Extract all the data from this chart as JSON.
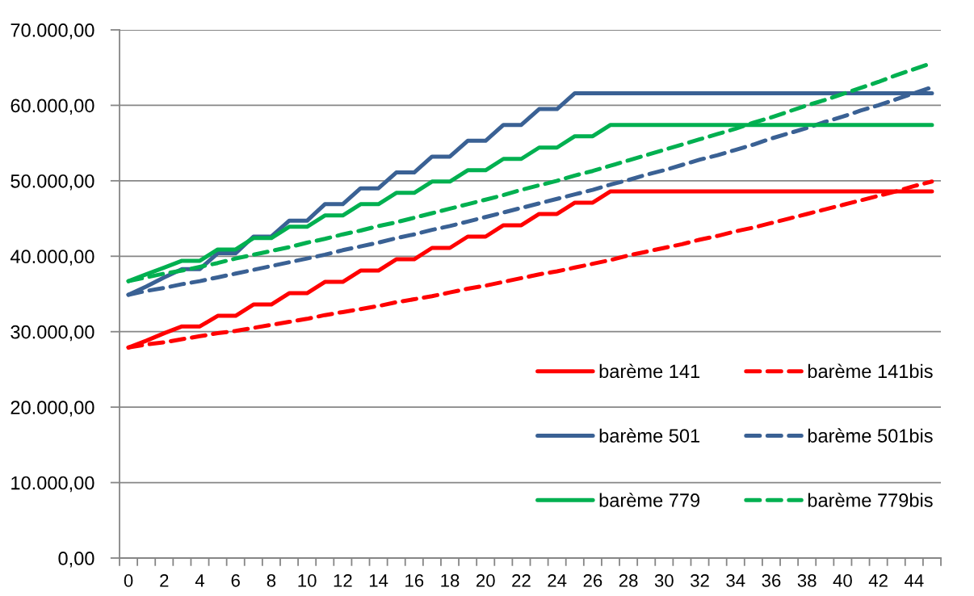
{
  "chart_data": {
    "type": "line",
    "categories": [
      "0",
      null,
      "2",
      null,
      "4",
      null,
      "6",
      null,
      "8",
      null,
      "10",
      null,
      "12",
      null,
      "14",
      null,
      "16",
      null,
      "18",
      null,
      "20",
      null,
      "22",
      null,
      "24",
      null,
      "26",
      null,
      "28",
      null,
      "30",
      null,
      "32",
      null,
      "34",
      null,
      "36",
      null,
      "38",
      null,
      "40",
      null,
      "42",
      null,
      "44",
      null
    ],
    "ylim": [
      0,
      70000
    ],
    "yticks": [
      {
        "value": 0,
        "label": "0,00"
      },
      {
        "value": 10000,
        "label": "10.000,00"
      },
      {
        "value": 20000,
        "label": "20.000,00"
      },
      {
        "value": 30000,
        "label": "30.000,00"
      },
      {
        "value": 40000,
        "label": "40.000,00"
      },
      {
        "value": 50000,
        "label": "50.000,00"
      },
      {
        "value": 60000,
        "label": "60.000,00"
      },
      {
        "value": 70000,
        "label": "70.000,00"
      }
    ],
    "grid": "y",
    "legend": "bottom right",
    "series": [
      {
        "name": "barème 141",
        "color": "#ff0000",
        "line_style": "solid",
        "values": [
          27900,
          28800,
          29800,
          30700,
          30700,
          32100,
          32100,
          33600,
          33600,
          35100,
          35100,
          36600,
          36600,
          38100,
          38100,
          39600,
          39600,
          41100,
          41100,
          42600,
          42600,
          44100,
          44100,
          45600,
          45600,
          47100,
          47100,
          48600,
          48600,
          48600,
          48600,
          48600,
          48600,
          48600,
          48600,
          48600,
          48600,
          48600,
          48600,
          48600,
          48600,
          48600,
          48600,
          48600,
          48600,
          48600
        ]
      },
      {
        "name": "barème 141bis",
        "color": "#ff0000",
        "line_style": "dashed",
        "values": [
          27900,
          28300,
          28600,
          29000,
          29400,
          29800,
          30100,
          30500,
          30900,
          31300,
          31700,
          32200,
          32600,
          33000,
          33400,
          33900,
          34300,
          34700,
          35200,
          35700,
          36100,
          36600,
          37100,
          37600,
          38000,
          38500,
          39000,
          39500,
          40100,
          40600,
          41100,
          41600,
          42200,
          42700,
          43300,
          43800,
          44400,
          45000,
          45600,
          46200,
          46800,
          47400,
          48000,
          48600,
          49300,
          49900
        ]
      },
      {
        "name": "barème 501",
        "color": "#3a6194",
        "line_style": "solid",
        "values": [
          34900,
          36000,
          37200,
          38300,
          38300,
          40400,
          40400,
          42600,
          42600,
          44700,
          44700,
          46900,
          46900,
          49000,
          49000,
          51100,
          51100,
          53200,
          53200,
          55300,
          55300,
          57400,
          57400,
          59500,
          59500,
          61600,
          61600,
          61600,
          61600,
          61600,
          61600,
          61600,
          61600,
          61600,
          61600,
          61600,
          61600,
          61600,
          61600,
          61600,
          61600,
          61600,
          61600,
          61600,
          61600,
          61600
        ]
      },
      {
        "name": "barème 501bis",
        "color": "#3a6194",
        "line_style": "dashed",
        "values": [
          34900,
          35400,
          35800,
          36300,
          36700,
          37200,
          37700,
          38200,
          38700,
          39200,
          39700,
          40200,
          40800,
          41300,
          41800,
          42400,
          42900,
          43500,
          44000,
          44600,
          45200,
          45800,
          46400,
          47000,
          47600,
          48200,
          48800,
          49500,
          50100,
          50800,
          51400,
          52100,
          52800,
          53400,
          54100,
          54800,
          55600,
          56300,
          57000,
          57800,
          58500,
          59300,
          60000,
          60800,
          61600,
          62400
        ]
      },
      {
        "name": "barème 779",
        "color": "#00b050",
        "line_style": "solid",
        "values": [
          36700,
          37600,
          38500,
          39400,
          39400,
          40900,
          40900,
          42400,
          42400,
          43900,
          43900,
          45400,
          45400,
          46900,
          46900,
          48400,
          48400,
          49900,
          49900,
          51400,
          51400,
          52900,
          52900,
          54400,
          54400,
          55900,
          55900,
          57400,
          57400,
          57400,
          57400,
          57400,
          57400,
          57400,
          57400,
          57400,
          57400,
          57400,
          57400,
          57400,
          57400,
          57400,
          57400,
          57400,
          57400,
          57400
        ]
      },
      {
        "name": "barème 779bis",
        "color": "#00b050",
        "line_style": "dashed",
        "values": [
          36700,
          37200,
          37700,
          38100,
          38600,
          39100,
          39700,
          40200,
          40700,
          41200,
          41800,
          42300,
          42900,
          43400,
          44000,
          44500,
          45100,
          45700,
          46300,
          46900,
          47500,
          48100,
          48800,
          49400,
          50000,
          50700,
          51300,
          52000,
          52700,
          53400,
          54100,
          54800,
          55500,
          56200,
          56900,
          57700,
          58400,
          59200,
          60000,
          60700,
          61500,
          62300,
          63100,
          64000,
          64800,
          65600
        ]
      }
    ]
  }
}
